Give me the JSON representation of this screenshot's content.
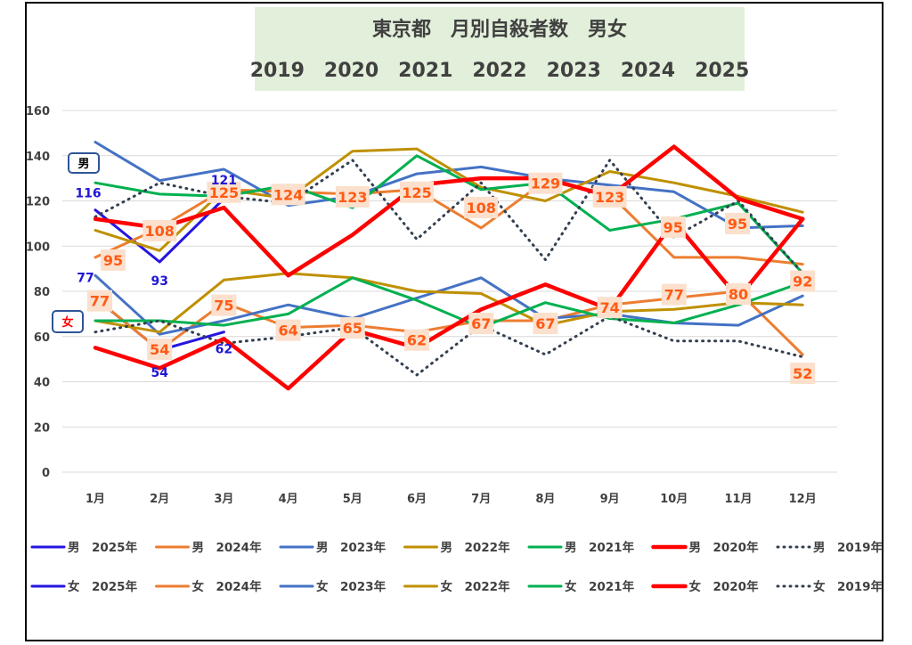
{
  "chart_data": {
    "type": "line",
    "title": "東京都　月別自殺者数　男女",
    "subtitle": "2019　2020　2021　2022　2023　2024　2025",
    "categories": [
      "1月",
      "2月",
      "3月",
      "4月",
      "5月",
      "6月",
      "7月",
      "8月",
      "9月",
      "10月",
      "11月",
      "12月"
    ],
    "ylim": [
      0,
      160
    ],
    "yticks": [
      0,
      20,
      40,
      60,
      80,
      100,
      120,
      140,
      160
    ],
    "grid": true,
    "legend_position": "bottom",
    "callouts": {
      "male": "男",
      "female": "女"
    },
    "series": [
      {
        "name": "男　2025年",
        "sex": "男",
        "color": "#2515e0",
        "dash": false,
        "bold": false,
        "values": [
          116,
          93,
          121,
          null,
          null,
          null,
          null,
          null,
          null,
          null,
          null,
          null
        ]
      },
      {
        "name": "男　2024年",
        "sex": "男",
        "color": "#ed7d31",
        "dash": false,
        "bold": false,
        "values": [
          95,
          108,
          125,
          124,
          123,
          125,
          108,
          129,
          123,
          95,
          95,
          92
        ]
      },
      {
        "name": "男　2023年",
        "sex": "男",
        "color": "#4472c4",
        "dash": false,
        "bold": false,
        "values": [
          146,
          129,
          134,
          118,
          122,
          132,
          135,
          130,
          127,
          124,
          108,
          109
        ]
      },
      {
        "name": "男　2022年",
        "sex": "男",
        "color": "#bf9000",
        "dash": false,
        "bold": false,
        "values": [
          107,
          98,
          125,
          121,
          142,
          143,
          126,
          120,
          133,
          128,
          122,
          115
        ]
      },
      {
        "name": "男　2021年",
        "sex": "男",
        "color": "#00b050",
        "dash": false,
        "bold": false,
        "values": [
          128,
          123,
          122,
          127,
          117,
          140,
          125,
          128,
          107,
          112,
          119,
          88
        ]
      },
      {
        "name": "男　2020年",
        "sex": "男",
        "color": "#ff0000",
        "dash": false,
        "bold": true,
        "values": [
          112,
          108,
          117,
          87,
          105,
          127,
          130,
          130,
          122,
          144,
          121,
          112
        ]
      },
      {
        "name": "男　2019年",
        "sex": "男",
        "color": "#333f50",
        "dash": true,
        "bold": false,
        "values": [
          113,
          128,
          122,
          119,
          138,
          103,
          128,
          94,
          138,
          104,
          120,
          88
        ]
      },
      {
        "name": "女　2025年",
        "sex": "女",
        "color": "#2515e0",
        "dash": false,
        "bold": false,
        "values": [
          77,
          54,
          62,
          null,
          null,
          null,
          null,
          null,
          null,
          null,
          null,
          null
        ]
      },
      {
        "name": "女　2024年",
        "sex": "女",
        "color": "#ed7d31",
        "dash": false,
        "bold": false,
        "values": [
          77,
          54,
          75,
          64,
          65,
          62,
          67,
          67,
          74,
          77,
          80,
          52
        ]
      },
      {
        "name": "女　2023年",
        "sex": "女",
        "color": "#4472c4",
        "dash": false,
        "bold": false,
        "values": [
          87,
          61,
          67,
          74,
          68,
          77,
          86,
          68,
          70,
          66,
          65,
          78
        ]
      },
      {
        "name": "女　2022年",
        "sex": "女",
        "color": "#bf9000",
        "dash": false,
        "bold": false,
        "values": [
          67,
          62,
          85,
          88,
          86,
          80,
          79,
          65,
          71,
          72,
          75,
          74
        ]
      },
      {
        "name": "女　2021年",
        "sex": "女",
        "color": "#00b050",
        "dash": false,
        "bold": false,
        "values": [
          67,
          67,
          65,
          70,
          86,
          76,
          64,
          75,
          68,
          66,
          74,
          84
        ]
      },
      {
        "name": "女　2020年",
        "sex": "女",
        "color": "#ff0000",
        "dash": false,
        "bold": true,
        "values": [
          55,
          46,
          59,
          37,
          63,
          55,
          72,
          83,
          72,
          111,
          77,
          112
        ]
      },
      {
        "name": "女　2019年",
        "sex": "女",
        "color": "#333f50",
        "dash": true,
        "bold": false,
        "values": [
          62,
          67,
          57,
          60,
          64,
          43,
          65,
          52,
          69,
          58,
          58,
          51
        ]
      }
    ],
    "data_labels_2024": {
      "male": [
        95,
        108,
        125,
        124,
        123,
        125,
        108,
        129,
        123,
        95,
        95,
        92
      ],
      "female": [
        77,
        54,
        75,
        64,
        65,
        62,
        67,
        67,
        74,
        77,
        80,
        52
      ]
    },
    "data_labels_2025": {
      "male": [
        116,
        93,
        121
      ],
      "female": [
        77,
        54,
        62
      ]
    }
  }
}
